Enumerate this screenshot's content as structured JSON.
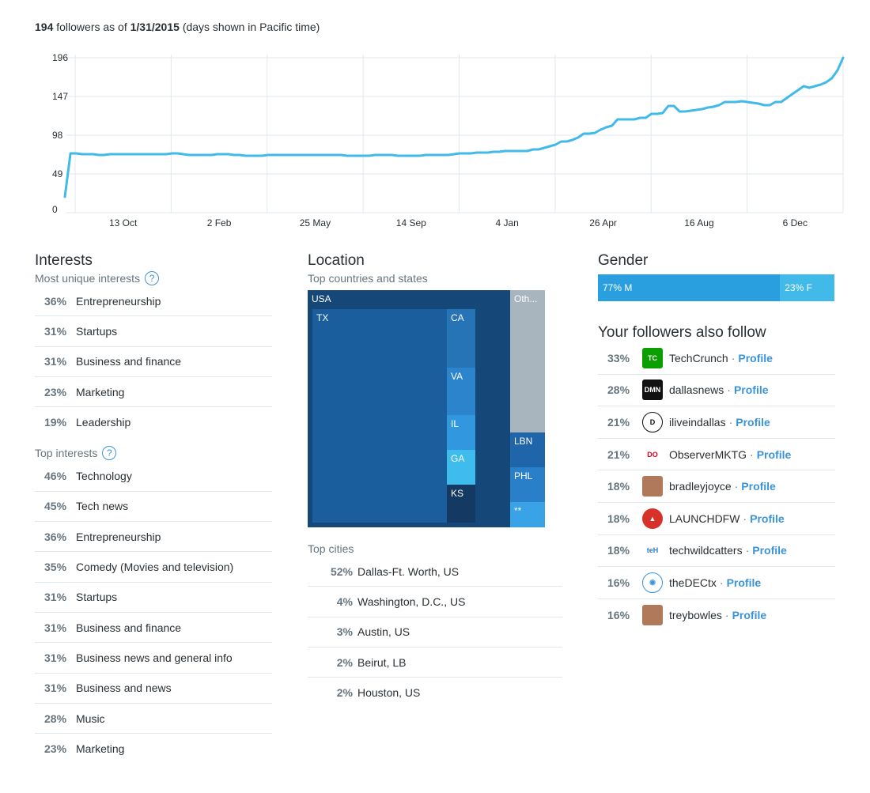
{
  "header": {
    "count": "194",
    "text1": "followers as of",
    "date": "1/31/2015",
    "text2": "(days shown in Pacific time)"
  },
  "chart_data": {
    "type": "line",
    "y_ticks": [
      "196",
      "147",
      "98",
      "49",
      "0"
    ],
    "ylim": [
      0,
      196
    ],
    "x_ticks": [
      "13 Oct",
      "2 Feb",
      "25 May",
      "14 Sep",
      "4 Jan",
      "26 Apr",
      "16 Aug",
      "6 Dec"
    ],
    "color": "#41bae9",
    "series": [
      {
        "values": [
          20,
          75,
          75,
          74,
          74,
          74,
          73,
          73,
          74,
          74,
          74,
          74,
          74,
          74,
          74,
          74,
          74,
          74,
          74,
          75,
          75,
          74,
          73,
          73,
          73,
          73,
          73,
          74,
          74,
          74,
          73,
          73,
          72,
          72,
          72,
          72,
          73,
          73,
          73,
          73,
          73,
          73,
          73,
          73,
          73,
          73,
          73,
          73,
          73,
          73,
          72,
          72,
          72,
          72,
          72,
          73,
          73,
          73,
          73,
          72,
          72,
          72,
          72,
          72,
          73,
          73,
          73,
          73,
          73,
          74,
          75,
          75,
          75,
          76,
          76,
          76,
          77,
          77,
          78,
          78,
          78,
          78,
          78,
          80,
          80,
          82,
          84,
          86,
          90,
          90,
          92,
          95,
          100,
          100,
          101,
          105,
          108,
          110,
          118,
          118,
          118,
          118,
          120,
          120,
          125,
          125,
          126,
          135,
          135,
          128,
          128,
          129,
          130,
          131,
          133,
          134,
          136,
          140,
          140,
          140,
          141,
          140,
          139,
          138,
          136,
          136,
          140,
          140,
          145,
          150,
          155,
          160,
          158,
          160,
          162,
          165,
          170,
          180,
          196
        ]
      }
    ]
  },
  "interests": {
    "title": "Interests",
    "unique_title": "Most unique interests",
    "unique": [
      {
        "pct": "36%",
        "label": "Entrepreneurship"
      },
      {
        "pct": "31%",
        "label": "Startups"
      },
      {
        "pct": "31%",
        "label": "Business and finance"
      },
      {
        "pct": "23%",
        "label": "Marketing"
      },
      {
        "pct": "19%",
        "label": "Leadership"
      }
    ],
    "top_title": "Top interests",
    "top": [
      {
        "pct": "46%",
        "label": "Technology"
      },
      {
        "pct": "45%",
        "label": "Tech news"
      },
      {
        "pct": "36%",
        "label": "Entrepreneurship"
      },
      {
        "pct": "35%",
        "label": "Comedy (Movies and television)"
      },
      {
        "pct": "31%",
        "label": "Startups"
      },
      {
        "pct": "31%",
        "label": "Business and finance"
      },
      {
        "pct": "31%",
        "label": "Business news and general info"
      },
      {
        "pct": "31%",
        "label": "Business and news"
      },
      {
        "pct": "28%",
        "label": "Music"
      },
      {
        "pct": "23%",
        "label": "Marketing"
      }
    ]
  },
  "location": {
    "title": "Location",
    "countries_title": "Top countries and states",
    "treemap": {
      "usa": "USA",
      "tx": "TX",
      "ca": "CA",
      "va": "VA",
      "il": "IL",
      "ga": "GA",
      "ks": "KS",
      "other": "Oth...",
      "lbn": "LBN",
      "phl": "PHL",
      "more": "**"
    },
    "cities_title": "Top cities",
    "cities": [
      {
        "pct": "52%",
        "label": "Dallas-Ft. Worth, US"
      },
      {
        "pct": "4%",
        "label": "Washington, D.C., US"
      },
      {
        "pct": "3%",
        "label": "Austin, US"
      },
      {
        "pct": "2%",
        "label": "Beirut, LB"
      },
      {
        "pct": "2%",
        "label": "Houston, US"
      }
    ]
  },
  "gender": {
    "title": "Gender",
    "male_label": "77% M",
    "male_fraction": 0.77,
    "female_label": "23% F",
    "male_color": "#2a9fe0",
    "female_color": "#41bae9"
  },
  "follows": {
    "title": "Your followers also follow",
    "profile_label": "Profile",
    "items": [
      {
        "pct": "33%",
        "name": "TechCrunch",
        "icon": "techcrunch-logo-icon"
      },
      {
        "pct": "28%",
        "name": "dallasnews",
        "icon": "dallasnews-logo-icon"
      },
      {
        "pct": "21%",
        "name": "iliveindallas",
        "icon": "iliveindallas-logo-icon"
      },
      {
        "pct": "21%",
        "name": "ObserverMKTG",
        "icon": "observer-logo-icon"
      },
      {
        "pct": "18%",
        "name": "bradleyjoyce",
        "icon": "person-avatar-icon"
      },
      {
        "pct": "18%",
        "name": "LAUNCHDFW",
        "icon": "rocket-logo-icon"
      },
      {
        "pct": "18%",
        "name": "techwildcatters",
        "icon": "techwildcatters-logo-icon"
      },
      {
        "pct": "16%",
        "name": "theDECtx",
        "icon": "microphone-logo-icon"
      },
      {
        "pct": "16%",
        "name": "treybowles",
        "icon": "person-avatar-icon"
      }
    ]
  }
}
